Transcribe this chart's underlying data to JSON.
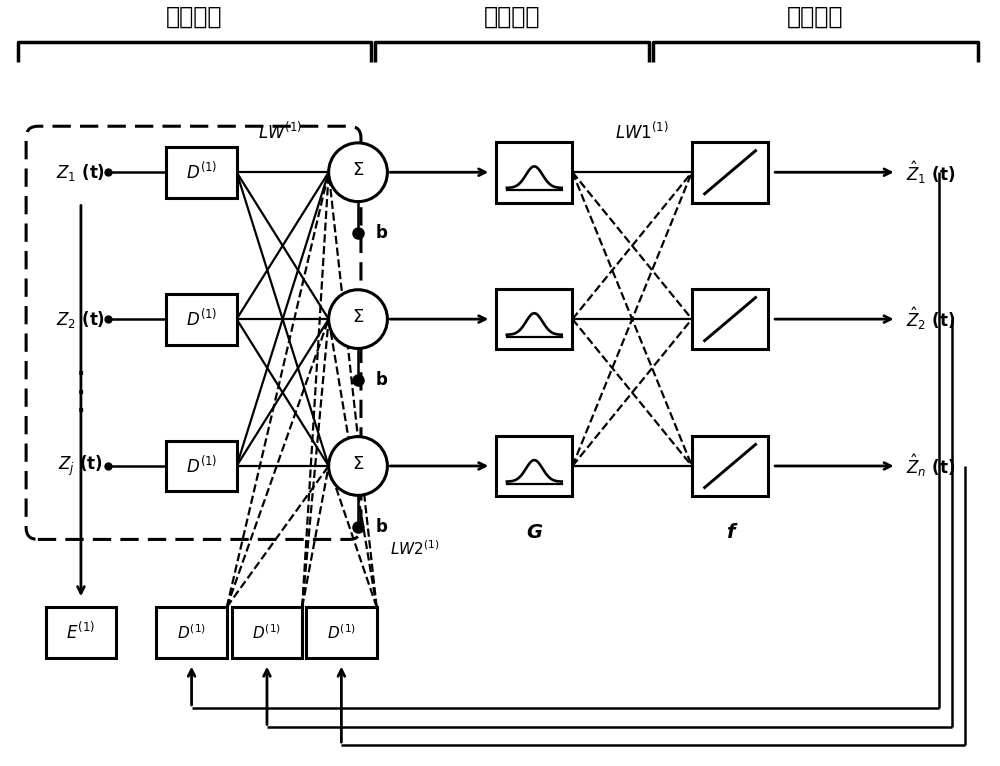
{
  "bg_color": "#ffffff",
  "label_input": "输入节点",
  "label_hidden": "隐含节点",
  "label_output": "输出节点",
  "z_labels": [
    "$Z_1$ (t)",
    "$Z_2$ (t)",
    "$Z_j$ (t)"
  ],
  "zhat_labels": [
    "$\\hat{Z}_1$ (t)",
    "$\\hat{Z}_2$ (t)",
    "$\\hat{Z}_n$ (t)"
  ],
  "lw_label": "$LW^{(1)}$",
  "lw1_label": "$LW1^{(1)}$",
  "lw2_label": "$LW2^{(1)}$",
  "b_label": "b",
  "G_label": "G",
  "f_label": "f",
  "E_label": "$E^{(1)}$",
  "D_label": "$D^{(1)}$"
}
